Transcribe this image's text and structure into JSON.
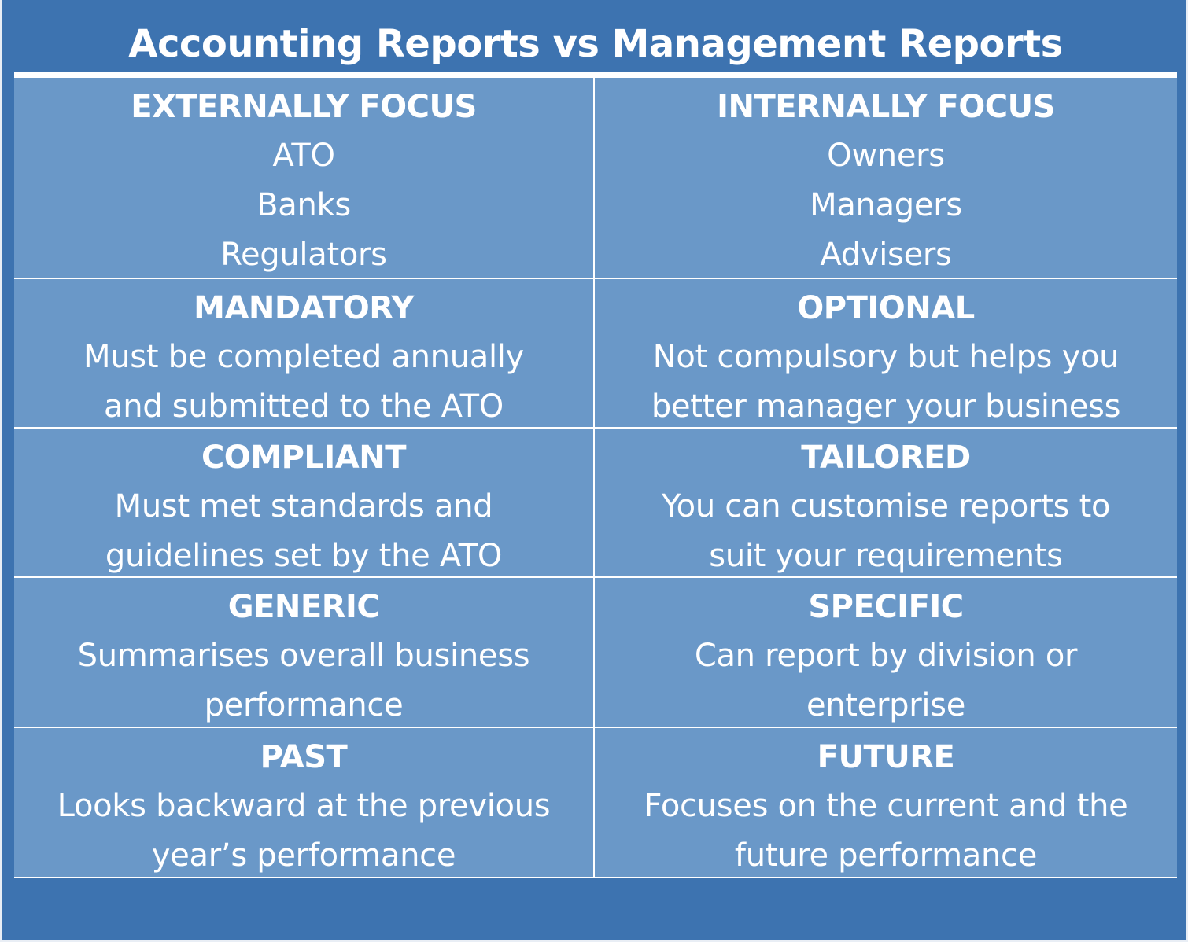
{
  "title": "Accounting Reports vs Management Reports",
  "colors": {
    "frame": "#3d73b0",
    "cell": "#6a98c8",
    "text": "#ffffff",
    "divider": "#ffffff"
  },
  "rows": [
    {
      "left": {
        "heading": "EXTERNALLY FOCUS",
        "lines": [
          "ATO",
          "Banks",
          "Regulators"
        ]
      },
      "right": {
        "heading": "INTERNALLY FOCUS",
        "lines": [
          "Owners",
          "Managers",
          "Advisers"
        ]
      }
    },
    {
      "left": {
        "heading": "MANDATORY",
        "lines": [
          "Must be completed annually",
          "and submitted to the ATO"
        ]
      },
      "right": {
        "heading": "OPTIONAL",
        "lines": [
          "Not compulsory but helps you",
          "better manager your business"
        ]
      }
    },
    {
      "left": {
        "heading": "COMPLIANT",
        "lines": [
          "Must met standards and",
          "guidelines set by the ATO"
        ]
      },
      "right": {
        "heading": "TAILORED",
        "lines": [
          "You can customise reports to",
          "suit your requirements"
        ]
      }
    },
    {
      "left": {
        "heading": "GENERIC",
        "lines": [
          "Summarises overall business",
          "performance"
        ]
      },
      "right": {
        "heading": "SPECIFIC",
        "lines": [
          "Can report by division or",
          "enterprise"
        ]
      }
    },
    {
      "left": {
        "heading": "PAST",
        "lines": [
          "Looks backward at the previous",
          "year’s performance"
        ]
      },
      "right": {
        "heading": "FUTURE",
        "lines": [
          "Focuses on the current and the",
          "future performance"
        ]
      }
    }
  ]
}
